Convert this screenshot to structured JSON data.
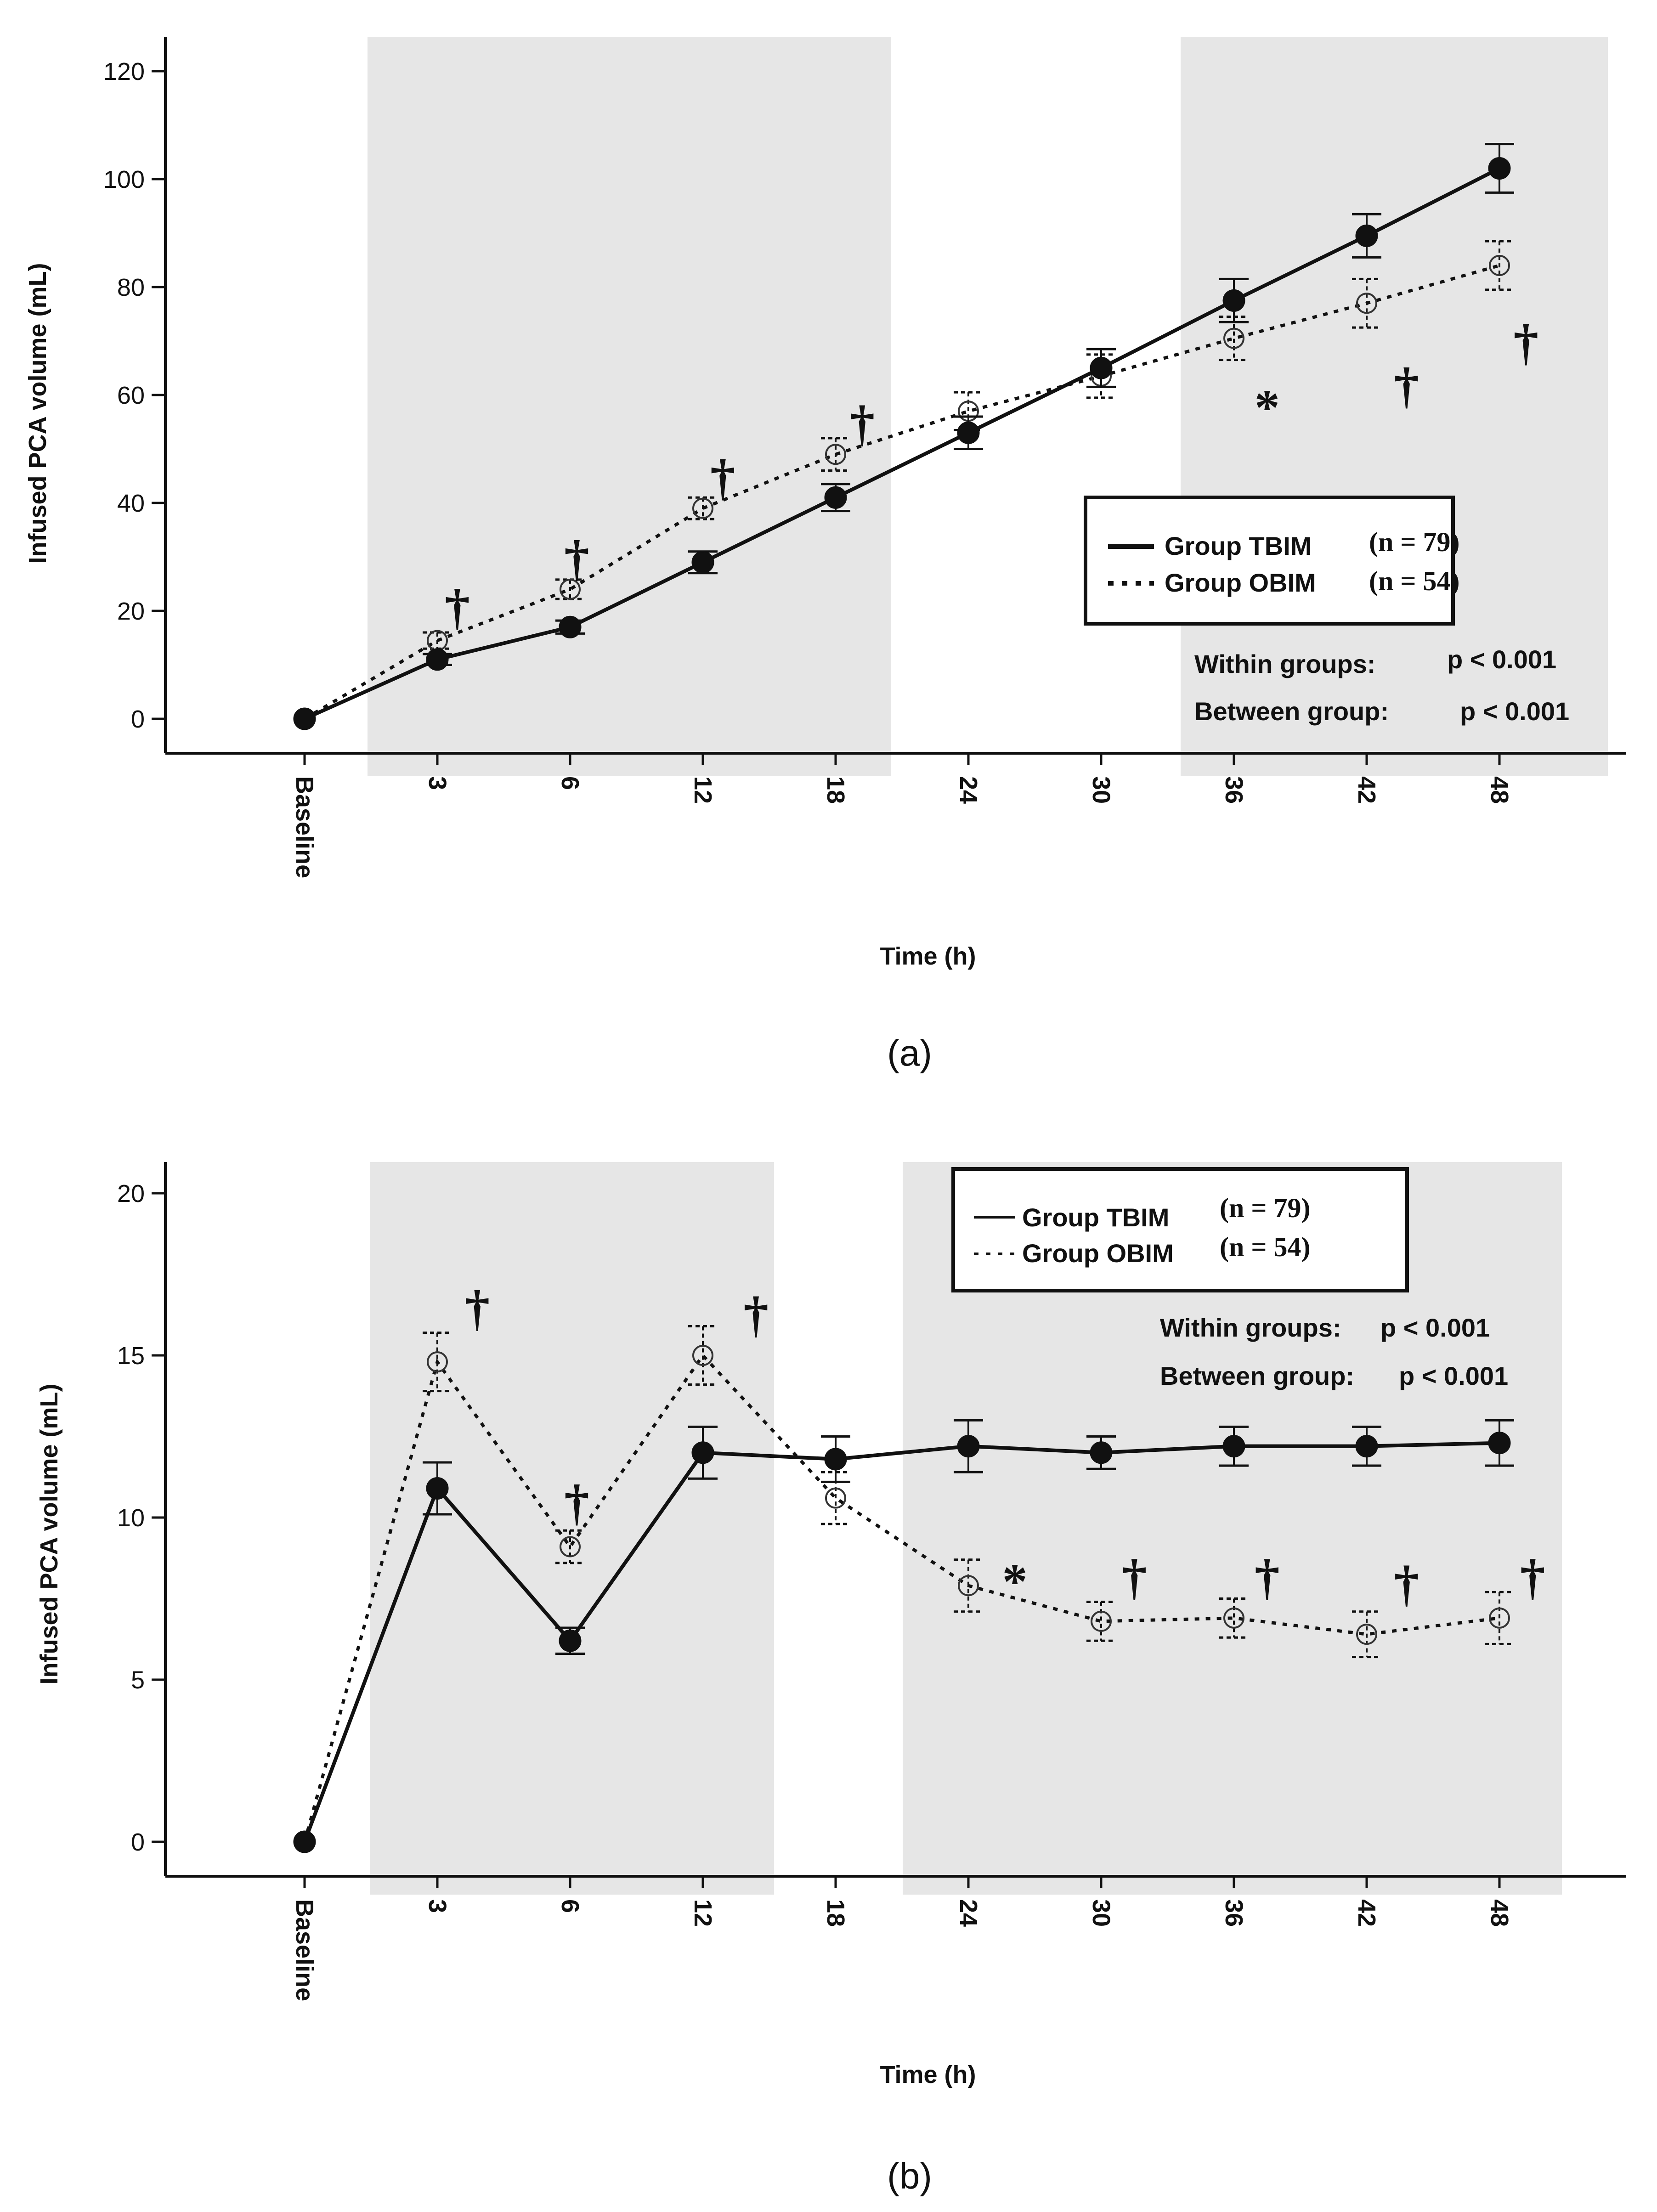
{
  "chart_data": [
    {
      "id": "a",
      "type": "line",
      "panel_label": "(a)",
      "xlabel": "Time  (h)",
      "ylabel": "Infused PCA volume (mL)",
      "ylim": [
        -7,
        127
      ],
      "yticks": [
        0,
        20,
        40,
        60,
        80,
        100,
        120
      ],
      "categories": [
        "Baseline",
        "3",
        "6",
        "12",
        "18",
        "24",
        "30",
        "36",
        "42",
        "48"
      ],
      "shaded_ranges": [
        [
          1,
          4
        ],
        [
          7,
          9
        ]
      ],
      "series": [
        {
          "name": "Group TBIM",
          "n_label": "(n = 79)",
          "values": [
            0,
            11,
            17,
            29,
            41,
            53,
            65,
            77.5,
            89.5,
            102
          ],
          "err": [
            0,
            1.0,
            1.2,
            2.0,
            2.5,
            3.0,
            3.5,
            4.0,
            4.0,
            4.5
          ],
          "style": "solid",
          "marker": "filled-circle"
        },
        {
          "name": "Group OBIM",
          "n_label": "(n = 54)",
          "values": [
            0,
            14.5,
            24,
            39,
            49,
            57,
            63.5,
            70.5,
            77,
            84
          ],
          "err": [
            0,
            1.5,
            1.8,
            2.0,
            3.0,
            3.5,
            4.0,
            4.0,
            4.5,
            4.5
          ],
          "style": "dotted",
          "marker": "open-circle"
        }
      ],
      "annotations": [
        {
          "text": "†",
          "x": 1.15,
          "y": 21
        },
        {
          "text": "†",
          "x": 2.05,
          "y": 30
        },
        {
          "text": "†",
          "x": 3.15,
          "y": 45
        },
        {
          "text": "†",
          "x": 4.2,
          "y": 55
        },
        {
          "text": "*",
          "x": 7.25,
          "y": 60.5
        },
        {
          "text": "†",
          "x": 8.3,
          "y": 62
        },
        {
          "text": "†",
          "x": 9.2,
          "y": 70
        }
      ],
      "legend": {
        "position": "right"
      },
      "stats": [
        {
          "label": "Within groups:",
          "value": "p < 0.001"
        },
        {
          "label": "Between group:",
          "value": "p < 0.001"
        }
      ]
    },
    {
      "id": "b",
      "type": "line",
      "panel_label": "(b)",
      "xlabel": "Time  (h)",
      "ylabel": "Infused PCA volume (mL)",
      "ylim": [
        -1,
        21
      ],
      "yticks": [
        0,
        5,
        10,
        15,
        20
      ],
      "categories": [
        "Baseline",
        "3",
        "6",
        "12",
        "18",
        "24",
        "30",
        "36",
        "42",
        "48"
      ],
      "shaded_ranges": [
        [
          1,
          3
        ],
        [
          5,
          9
        ]
      ],
      "series": [
        {
          "name": "Group TBIM",
          "n_label": "(n = 79)",
          "values": [
            0,
            10.9,
            6.2,
            12.0,
            11.8,
            12.2,
            12.0,
            12.2,
            12.2,
            12.3
          ],
          "err": [
            0,
            0.8,
            0.4,
            0.8,
            0.7,
            0.8,
            0.5,
            0.6,
            0.6,
            0.7
          ],
          "style": "solid",
          "marker": "filled-circle"
        },
        {
          "name": "Group OBIM",
          "n_label": "(n = 54)",
          "values": [
            0,
            14.8,
            9.1,
            15.0,
            10.6,
            7.9,
            6.8,
            6.9,
            6.4,
            6.9
          ],
          "err": [
            0,
            0.9,
            0.5,
            0.9,
            0.8,
            0.8,
            0.6,
            0.6,
            0.7,
            0.8
          ],
          "style": "dotted",
          "marker": "open-circle"
        }
      ],
      "annotations": [
        {
          "text": "†",
          "x": 1.3,
          "y": 16.5
        },
        {
          "text": "†",
          "x": 2.05,
          "y": 10.5
        },
        {
          "text": "†",
          "x": 3.4,
          "y": 16.3
        },
        {
          "text": "*",
          "x": 5.35,
          "y": 8.5
        },
        {
          "text": "†",
          "x": 6.25,
          "y": 8.2
        },
        {
          "text": "†",
          "x": 7.25,
          "y": 8.2
        },
        {
          "text": "†",
          "x": 8.3,
          "y": 8.0
        },
        {
          "text": "†",
          "x": 9.25,
          "y": 8.2
        }
      ],
      "legend": {
        "position": "top-right"
      },
      "stats": [
        {
          "label": "Within groups:",
          "value": "p < 0.001"
        },
        {
          "label": "Between group:",
          "value": "p < 0.001"
        }
      ]
    }
  ]
}
